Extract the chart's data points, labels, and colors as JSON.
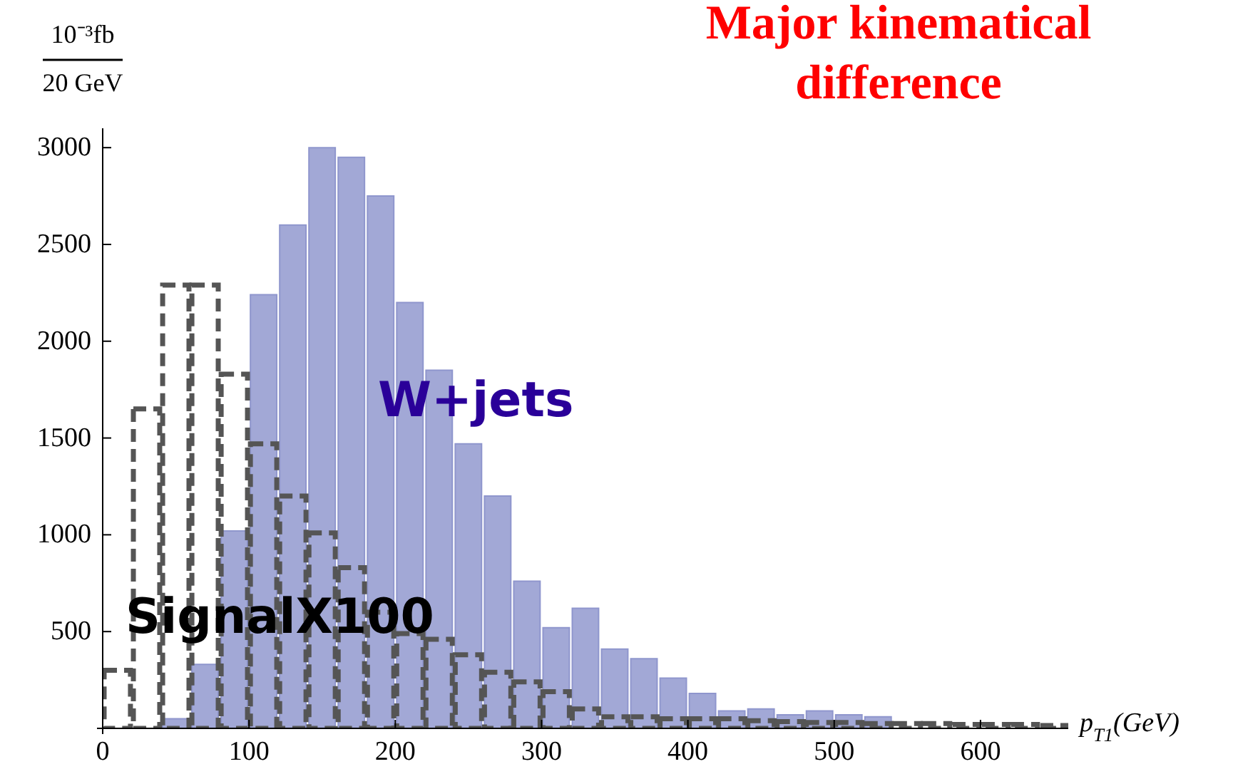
{
  "chart_data": {
    "type": "histogram",
    "title": "Major kinematical difference",
    "xlabel": "p$_{T1}$(GeV)",
    "ylabel": "10⁻³fb 20 GeV",
    "bins": [
      0,
      20,
      40,
      60,
      80,
      100,
      120,
      140,
      160,
      180,
      200,
      220,
      240,
      260,
      280,
      300,
      320,
      340,
      360,
      380,
      400,
      420,
      440,
      460,
      480,
      500,
      520,
      540,
      560,
      580,
      600,
      620,
      640,
      660
    ],
    "series": [
      {
        "name": "W+jets",
        "color": "#a2a8d6",
        "values": [
          0,
          0,
          50,
          330,
          1020,
          2240,
          2600,
          3000,
          2950,
          2750,
          2200,
          1850,
          1470,
          1200,
          760,
          520,
          620,
          410,
          360,
          260,
          180,
          90,
          100,
          70,
          90,
          70,
          60,
          0,
          0,
          0,
          0,
          0,
          0
        ]
      },
      {
        "name": "SignalX100",
        "color": "#555555",
        "line_style": "dashed",
        "values": [
          300,
          1650,
          2290,
          2290,
          1830,
          1470,
          1200,
          1010,
          830,
          600,
          490,
          460,
          380,
          290,
          240,
          190,
          100,
          60,
          60,
          50,
          50,
          50,
          40,
          35,
          30,
          30,
          25,
          25,
          25,
          20,
          20,
          20,
          15
        ]
      }
    ],
    "xlim": [
      0,
      660
    ],
    "xticks": [
      0,
      100,
      200,
      300,
      400,
      500,
      600
    ],
    "ylim": [
      0,
      3100
    ],
    "yticks": [
      500,
      1000,
      1500,
      2000,
      2500,
      3000
    ]
  }
}
